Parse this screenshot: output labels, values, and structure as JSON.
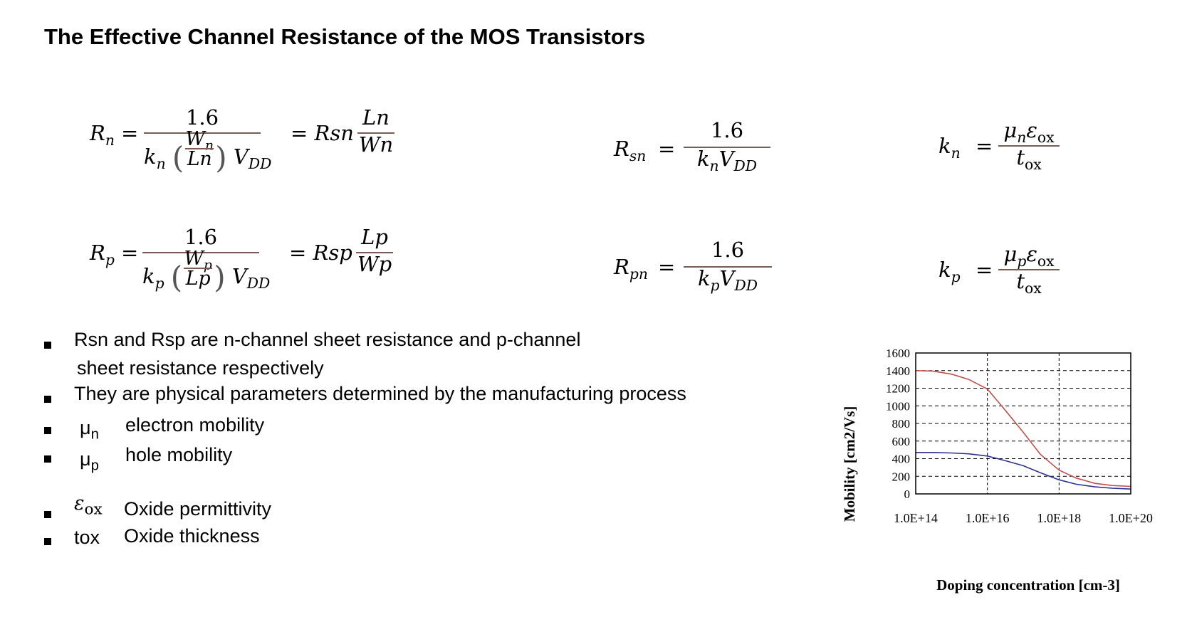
{
  "slide": {
    "title": "The Effective Channel Resistance of the MOS Transistors"
  },
  "equations": {
    "rn": {
      "lhs_sym": "R",
      "lhs_sub": "n",
      "eq": "=",
      "num": "1.6",
      "k_sym": "k",
      "k_sub": "n",
      "w_sym": "W",
      "w_sub": "n",
      "l_text": "Ln",
      "v_sym": "V",
      "v_sub": "DD",
      "eq2": "= Rsn",
      "r_num": "Ln",
      "r_den": "Wn"
    },
    "rp": {
      "lhs_sym": "R",
      "lhs_sub": "p",
      "eq": "=",
      "num": "1.6",
      "k_sym": "k",
      "k_sub": "p",
      "w_sym": "W",
      "w_sub": "p",
      "l_text": "Lp",
      "v_sym": "V",
      "v_sub": "DD",
      "eq2": "= Rsp",
      "r_num": "Lp",
      "r_den": "Wp"
    },
    "rsn": {
      "lhs_sym": "R",
      "lhs_sub": "sn",
      "eq": "=",
      "num": "1.6",
      "k_sym": "k",
      "k_sub": "n",
      "v_sym": "V",
      "v_sub": "DD"
    },
    "rpn": {
      "lhs_sym": "R",
      "lhs_sub": "pn",
      "eq": "=",
      "num": "1.6",
      "k_sym": "k",
      "k_sub": "p",
      "v_sym": "V",
      "v_sub": "DD"
    },
    "kn": {
      "lhs_sym": "k",
      "lhs_sub": "n",
      "eq": "=",
      "mu": "μ",
      "mu_sub": "n",
      "eps": "ε",
      "eps_sub": "ox",
      "t": "t",
      "t_sub": "ox"
    },
    "kp": {
      "lhs_sym": "k",
      "lhs_sub": "p",
      "eq": "=",
      "mu": "μ",
      "mu_sub": "p",
      "eps": "ε",
      "eps_sub": "ox",
      "t": "t",
      "t_sub": "ox"
    }
  },
  "bullets": [
    {
      "line1": "Rsn and Rsp are n-channel sheet resistance and p-channel",
      "line2": "sheet resistance respectively"
    },
    {
      "text": "They are physical parameters determined by the manufacturing process"
    },
    {
      "sym": "μ",
      "sub": "n",
      "desc": "electron mobility"
    },
    {
      "sym": "μ",
      "sub": "p",
      "desc": "hole  mobility"
    },
    {
      "sym": "ε",
      "sub": "ox",
      "desc": "Oxide permittivity"
    },
    {
      "sym": "tox",
      "desc": "Oxide thickness"
    }
  ],
  "chart_data": {
    "type": "line",
    "xlabel": "Doping concentration [cm-3]",
    "ylabel": "Mobility [cm2/Vs]",
    "x_scale": "log",
    "xlim": [
      100000000000000.0,
      1e+20
    ],
    "ylim": [
      0,
      1600
    ],
    "x_tick_labels": [
      "1.0E+14",
      "1.0E+16",
      "1.0E+18",
      "1.0E+20"
    ],
    "y_tick_labels": [
      "1600",
      "1400",
      "1200",
      "1000",
      "800",
      "600",
      "400",
      "200",
      "0"
    ],
    "grid": true,
    "colors": {
      "electron": "#c0504d",
      "hole": "#2e3192"
    },
    "series": [
      {
        "color_key": "electron",
        "x": [
          100000000000000.0,
          300000000000000.0,
          1000000000000000.0,
          3000000000000000.0,
          1e+16,
          3e+16,
          1e+17,
          3e+17,
          1e+18,
          3e+18,
          1e+19,
          3e+19,
          1e+20
        ],
        "y": [
          1400,
          1395,
          1360,
          1300,
          1190,
          960,
          700,
          450,
          270,
          180,
          120,
          95,
          85
        ]
      },
      {
        "color_key": "hole",
        "x": [
          100000000000000.0,
          300000000000000.0,
          1000000000000000.0,
          3000000000000000.0,
          1e+16,
          3e+16,
          1e+17,
          3e+17,
          1e+18,
          3e+18,
          1e+19,
          3e+19,
          1e+20
        ],
        "y": [
          470,
          470,
          465,
          455,
          430,
          380,
          320,
          240,
          160,
          110,
          80,
          65,
          55
        ]
      }
    ]
  }
}
